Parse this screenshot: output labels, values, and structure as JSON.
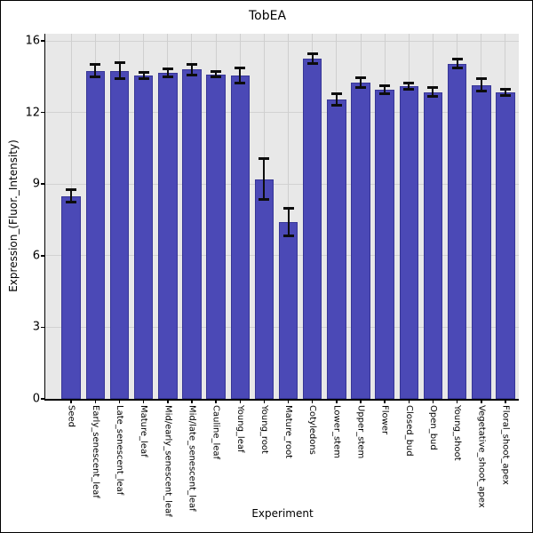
{
  "figure": {
    "title": "TobEA",
    "xlabel": "Experiment",
    "ylabel": "Expression_(Fluor._Intensity)"
  },
  "chart_data": {
    "type": "bar",
    "title": "TobEA",
    "xlabel": "Experiment",
    "ylabel": "Expression_(Fluor._Intensity)",
    "categories": [
      "Seed",
      "Early_senescent_leaf",
      "Late_senescent_leaf",
      "Mature_leaf",
      "Mid/early_senescent_leaf",
      "Mid/late_senescent_leaf",
      "Cauline_leaf",
      "Young_leaf",
      "Young_root",
      "Mature_root",
      "Cotyledons",
      "Lower_stem",
      "Upper_stem",
      "Flower",
      "Closed_bud",
      "Open_bud",
      "Young_shoot",
      "Vegetative_shoot_apex",
      "Floral_shoot_apex"
    ],
    "values": [
      8.5,
      13.75,
      13.75,
      13.55,
      13.65,
      13.8,
      13.6,
      13.55,
      9.2,
      7.4,
      14.25,
      12.55,
      13.25,
      12.95,
      13.1,
      12.85,
      14.05,
      13.15,
      12.85
    ],
    "errors": [
      0.27,
      0.27,
      0.32,
      0.12,
      0.17,
      0.23,
      0.12,
      0.33,
      0.85,
      0.58,
      0.21,
      0.23,
      0.19,
      0.16,
      0.14,
      0.19,
      0.2,
      0.27,
      0.14
    ],
    "yticks": [
      0,
      3,
      6,
      9,
      12,
      16
    ],
    "ylim": [
      0,
      15.3
    ],
    "grid": true,
    "legend": "none",
    "bar_color": "#4b49b6",
    "error_color": "#0d0d0d",
    "plot_bg_color": "#e8e8e8",
    "grid_color": "#d2d2d2"
  }
}
